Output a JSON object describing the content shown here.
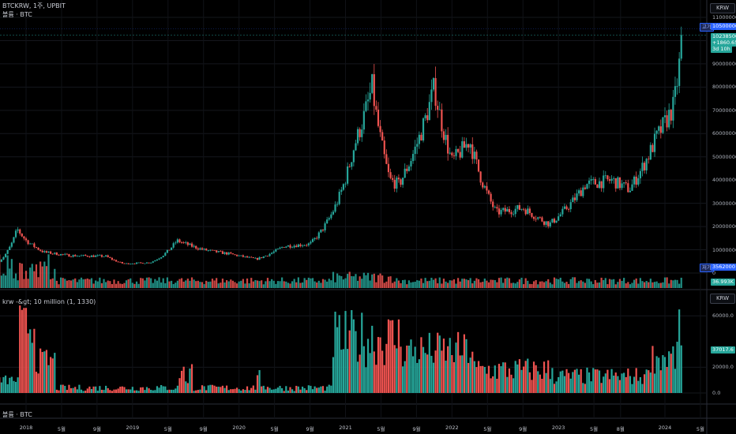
{
  "header": {
    "symbol_line": "BTCKRW, 1주, UPBIT",
    "volume_title": "볼륨 · BTC",
    "indicator_title": "krw -&gt; 10 million (1, 1330)",
    "bottom_title": "볼륨 · BTC"
  },
  "price_axis": {
    "unit": "KRW",
    "ticks": [
      "110000000",
      "105000000",
      "90000000",
      "80000000",
      "70000000",
      "60000000",
      "50000000",
      "40000000",
      "30000000",
      "20000000",
      "10000000",
      "0"
    ],
    "high_label": "고가",
    "high_value": "105000000",
    "last_price": "102385000",
    "change": "+1860.65%",
    "countdown": "3d 10h",
    "low_label": "저가",
    "low_value": "3562000",
    "volume_value": "36.993K"
  },
  "indicator_axis": {
    "unit": "KRW",
    "ticks": [
      "60000.0",
      "20000.0",
      "0.0"
    ],
    "current_value": "37017.6"
  },
  "time_axis": {
    "labels": [
      "2018",
      "5월",
      "9월",
      "2019",
      "5월",
      "9월",
      "2020",
      "5월",
      "9월",
      "2021",
      "5월",
      "9월",
      "2022",
      "5월",
      "9월",
      "2023",
      "5월",
      "8월",
      "2024",
      "5월"
    ]
  },
  "colors": {
    "up": "#26a69a",
    "down": "#ef5350",
    "tag_blue": "#2962ff",
    "tag_teal": "#26a69a"
  },
  "chart_data": {
    "type": "candlestick",
    "interval": "1 week",
    "anchor_closes_krw": [
      [
        "2017-10",
        5200000
      ],
      [
        "2017-12",
        19000000
      ],
      [
        "2018-01",
        14000000
      ],
      [
        "2018-03",
        9000000
      ],
      [
        "2018-06",
        7500000
      ],
      [
        "2018-10",
        7200000
      ],
      [
        "2018-12",
        4000000
      ],
      [
        "2019-03",
        4500000
      ],
      [
        "2019-06",
        14000000
      ],
      [
        "2019-09",
        10000000
      ],
      [
        "2019-12",
        8200000
      ],
      [
        "2020-03",
        6000000
      ],
      [
        "2020-06",
        11500000
      ],
      [
        "2020-09",
        12500000
      ],
      [
        "2020-12",
        30000000
      ],
      [
        "2021-02",
        55000000
      ],
      [
        "2021-04",
        80000000
      ],
      [
        "2021-06",
        40000000
      ],
      [
        "2021-07",
        38000000
      ],
      [
        "2021-09",
        55000000
      ],
      [
        "2021-11",
        80000000
      ],
      [
        "2022-01",
        48000000
      ],
      [
        "2022-03",
        57000000
      ],
      [
        "2022-06",
        26000000
      ],
      [
        "2022-09",
        28000000
      ],
      [
        "2022-12",
        21000000
      ],
      [
        "2023-04",
        38000000
      ],
      [
        "2023-07",
        40000000
      ],
      [
        "2023-09",
        36000000
      ],
      [
        "2023-12",
        58000000
      ],
      [
        "2024-02",
        72000000
      ],
      [
        "2024-03",
        102385000
      ]
    ],
    "price_range_krw": [
      0,
      110000000
    ],
    "volume_range_btc": [
      0,
      40000
    ],
    "indicator_range": [
      0,
      70000
    ]
  }
}
